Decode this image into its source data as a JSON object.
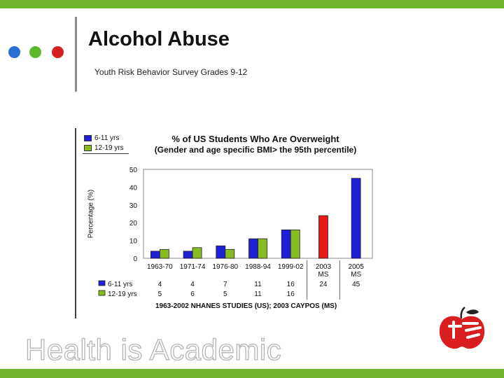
{
  "slide": {
    "title": "Alcohol Abuse",
    "subtitle": "Youth Risk Behavior Survey Grades 9-12",
    "brand": "Health is Academic",
    "colors": {
      "accent_green": "#6fb52c",
      "dot_blue": "#2a6fd6",
      "dot_green": "#5cb82a",
      "dot_red": "#d42020"
    }
  },
  "chart_data": {
    "type": "bar",
    "title": "% of US Students Who Are Overweight",
    "subtitle": "(Gender and age specific BMI> the 95th percentile)",
    "ylabel": "Percentage (%)",
    "xlabel": "1963-2002 NHANES STUDIES (US); 2003 CAYPOS (MS)",
    "ylim": [
      0,
      50
    ],
    "yticks": [
      0,
      10,
      20,
      30,
      40,
      50
    ],
    "categories": [
      "1963-70",
      "1971-74",
      "1976-80",
      "1988-94",
      "1999-02",
      "2003 MS",
      "2005 MS"
    ],
    "legend_top": [
      "6-11 yrs",
      "12-19 yrs"
    ],
    "series": [
      {
        "name": "6-11 yrs",
        "color": "#1f1fd6",
        "values": [
          4,
          4,
          7,
          11,
          16,
          null,
          null
        ]
      },
      {
        "name": "12-19 yrs",
        "color": "#88bb22",
        "values": [
          5,
          6,
          5,
          11,
          16,
          null,
          null
        ]
      },
      {
        "name": "2003 MS",
        "color": "#e61a1a",
        "values": [
          null,
          null,
          null,
          null,
          null,
          24,
          null
        ]
      },
      {
        "name": "2005 MS",
        "color": "#1f1fd6",
        "values": [
          null,
          null,
          null,
          null,
          null,
          null,
          45
        ]
      }
    ],
    "table": {
      "rows": [
        {
          "name": "6-11 yrs",
          "color": "#1f1fd6",
          "values": [
            "4",
            "4",
            "7",
            "11",
            "16",
            "24",
            "45"
          ]
        },
        {
          "name": "12-19 yrs",
          "color": "#88bb22",
          "values": [
            "5",
            "6",
            "5",
            "11",
            "16",
            "",
            ""
          ]
        }
      ]
    }
  }
}
